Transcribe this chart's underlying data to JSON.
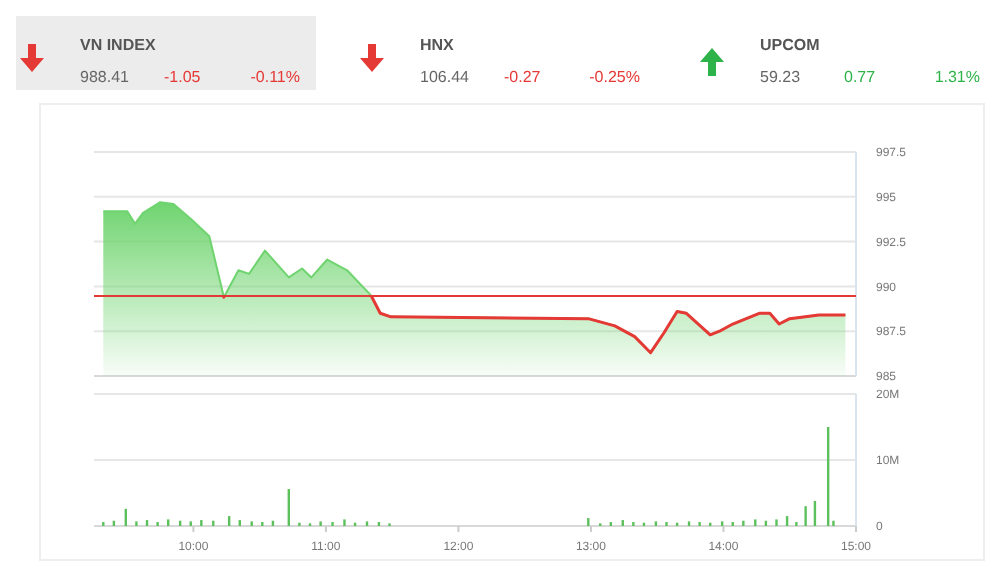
{
  "chart_data": [
    {
      "type": "other",
      "annotations": [
        "VN INDEX",
        "988.41",
        "-1.05",
        "-0.11%",
        "HNX",
        "106.44",
        "-0.27",
        "-0.25%",
        "UPCOM",
        "59.23",
        "0.77",
        "1.31%"
      ]
    },
    {
      "type": "area",
      "x": [
        9.32,
        9.5,
        9.56,
        9.62,
        9.75,
        9.85,
        9.99,
        10.12,
        10.23,
        10.34,
        10.42,
        10.54,
        10.72,
        10.82,
        10.89,
        11.01,
        11.16,
        11.34,
        11.41,
        11.49,
        12.98,
        13.18,
        13.33,
        13.45,
        13.55,
        13.65,
        13.72,
        13.9,
        13.97,
        14.07,
        14.27,
        14.35,
        14.42,
        14.5,
        14.72,
        14.92
      ],
      "series": [
        {
          "color": "#6fd46f",
          "values": [
            994.2,
            994.2,
            993.5,
            994.1,
            994.7,
            994.6,
            993.7,
            992.8,
            989.4,
            990.9,
            990.7,
            992,
            990.5,
            991,
            990.5,
            991.5,
            990.9,
            989.5,
            988.5,
            988.3,
            988.2,
            987.8,
            987.2,
            986.3,
            987.4,
            988.6,
            988.5,
            987.3,
            987.5,
            987.9,
            988.5,
            988.5,
            987.9,
            988.2,
            988.4,
            988.4
          ]
        }
      ],
      "xlim": [
        9.25,
        15
      ],
      "ylim": [
        985,
        997.5
      ],
      "yticks": [
        985,
        987.5,
        990,
        992.5,
        995,
        997.5
      ],
      "grid": "y",
      "tick_labels": "y",
      "ref_lines": [
        {
          "axis": "y",
          "value": 989.46,
          "color": "#e53935"
        }
      ]
    },
    {
      "type": "bar",
      "x": [
        9.32,
        9.4,
        9.49,
        9.57,
        9.65,
        9.73,
        9.81,
        9.9,
        9.98,
        10.06,
        10.15,
        10.27,
        10.35,
        10.44,
        10.52,
        10.6,
        10.72,
        10.8,
        10.88,
        10.96,
        11.05,
        11.14,
        11.22,
        11.31,
        11.4,
        11.48,
        12.98,
        13.07,
        13.15,
        13.24,
        13.32,
        13.4,
        13.49,
        13.57,
        13.65,
        13.74,
        13.82,
        13.9,
        13.99,
        14.07,
        14.15,
        14.24,
        14.32,
        14.4,
        14.48,
        14.55,
        14.62,
        14.69,
        14.79,
        14.83
      ],
      "series": [
        {
          "color": "#5cc15c",
          "values": [
            0.6,
            0.8,
            2.6,
            0.7,
            0.9,
            0.6,
            1,
            0.8,
            0.7,
            0.9,
            0.8,
            1.5,
            0.9,
            0.7,
            0.6,
            0.8,
            5.6,
            0.5,
            0.4,
            0.7,
            0.6,
            1,
            0.5,
            0.7,
            0.6,
            0.4,
            1.2,
            0.4,
            0.6,
            0.9,
            0.6,
            0.5,
            0.7,
            0.6,
            0.5,
            0.7,
            0.6,
            0.5,
            0.7,
            0.6,
            0.8,
            1,
            0.8,
            1,
            1.5,
            0.6,
            3,
            3.8,
            15,
            0.8
          ]
        }
      ],
      "xlim": [
        9.25,
        15
      ],
      "xticks": [
        {
          "value": 10,
          "label": "10:00"
        },
        {
          "value": 11,
          "label": "11:00"
        },
        {
          "value": 12,
          "label": "12:00"
        },
        {
          "value": 13,
          "label": "13:00"
        },
        {
          "value": 14,
          "label": "14:00"
        },
        {
          "value": 15,
          "label": "15:00"
        }
      ],
      "ylim": [
        0,
        20
      ],
      "yticks": [
        0,
        {
          "value": 10,
          "label": "10M"
        },
        {
          "value": 20,
          "label": "20M"
        }
      ],
      "grid": "y"
    }
  ]
}
